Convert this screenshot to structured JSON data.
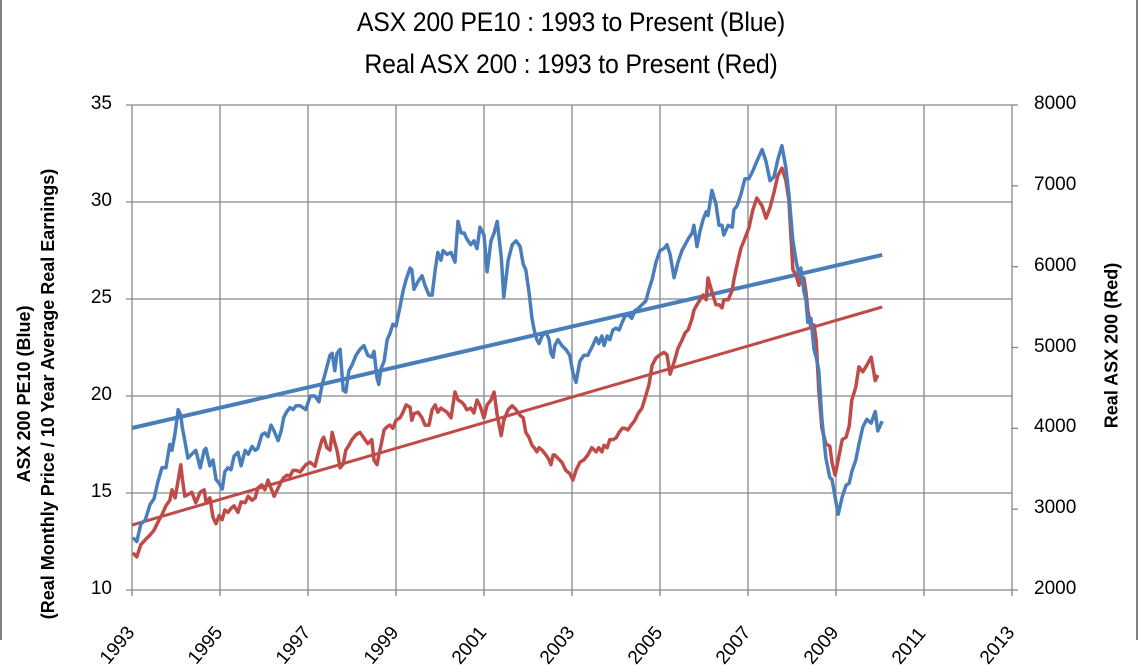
{
  "chart": {
    "title_line1": "ASX 200 PE10 : 1993 to Present (Blue)",
    "title_line2": "Real ASX 200 : 1993 to Present (Red)",
    "y_left_label_line1": "ASX 200 PE10 (Blue)",
    "y_left_label_line2": "(Real Monthly Price / 10 Year Average Real Earnings)",
    "y_right_label": "Real  ASX 200 (Red)",
    "y_left_ticks": [
      "35",
      "30",
      "25",
      "20",
      "15",
      "10"
    ],
    "y_right_ticks": [
      "8000",
      "7000",
      "6000",
      "5000",
      "4000",
      "3000",
      "2000"
    ],
    "x_ticks": [
      "1993",
      "1995",
      "1997",
      "1999",
      "2001",
      "2003",
      "2005",
      "2007",
      "2009",
      "2011",
      "2013"
    ],
    "colors": {
      "blue": "#4a7ebb",
      "red": "#be4b48",
      "grid": "#868686",
      "axis": "#868686"
    }
  },
  "chart_data": {
    "type": "line",
    "title": "ASX 200 PE10 : 1993 to Present (Blue) / Real ASX 200 : 1993 to Present (Red)",
    "xlabel": "",
    "ylabel": "ASX 200 PE10 (Blue) (Real Monthly Price / 10 Year Average Real Earnings)",
    "ylabel_right": "Real  ASX 200 (Red)",
    "xlim": [
      1993,
      2013
    ],
    "ylim": [
      10,
      35
    ],
    "ylim_right": [
      2000,
      8000
    ],
    "grid": true,
    "legend": "none (series identified in title by color)",
    "x": [
      1993.02,
      1993.11,
      1993.2,
      1993.3,
      1993.41,
      1993.5,
      1993.59,
      1993.68,
      1993.77,
      1993.86,
      1993.91,
      1993.98,
      1994.05,
      1994.11,
      1994.14,
      1994.2,
      1994.27,
      1994.36,
      1994.45,
      1994.55,
      1994.64,
      1994.68,
      1994.77,
      1994.84,
      1994.91,
      1994.98,
      1995.05,
      1995.11,
      1995.18,
      1995.25,
      1995.32,
      1995.41,
      1995.48,
      1995.57,
      1995.64,
      1995.73,
      1995.8,
      1995.86,
      1995.95,
      1996.02,
      1996.09,
      1996.16,
      1996.23,
      1996.32,
      1996.39,
      1996.45,
      1996.52,
      1996.59,
      1996.66,
      1996.73,
      1996.82,
      1996.95,
      1997.05,
      1997.16,
      1997.25,
      1997.32,
      1997.36,
      1997.43,
      1997.5,
      1997.55,
      1997.61,
      1997.66,
      1997.73,
      1997.8,
      1997.86,
      1997.93,
      1998.0,
      1998.09,
      1998.18,
      1998.27,
      1998.36,
      1998.45,
      1998.5,
      1998.57,
      1998.61,
      1998.66,
      1998.73,
      1998.8,
      1998.86,
      1998.93,
      1999.0,
      1999.09,
      1999.16,
      1999.23,
      1999.32,
      1999.36,
      1999.41,
      1999.5,
      1999.59,
      1999.66,
      1999.75,
      1999.82,
      1999.89,
      1999.95,
      2000.02,
      2000.07,
      2000.16,
      2000.25,
      2000.34,
      2000.41,
      2000.48,
      2000.55,
      2000.61,
      2000.7,
      2000.77,
      2000.84,
      2000.91,
      2001.0,
      2001.07,
      2001.16,
      2001.23,
      2001.3,
      2001.39,
      2001.45,
      2001.55,
      2001.64,
      2001.73,
      2001.82,
      2001.89,
      2001.95,
      2002.02,
      2002.09,
      2002.14,
      2002.2,
      2002.25,
      2002.32,
      2002.41,
      2002.48,
      2002.52,
      2002.57,
      2002.61,
      2002.68,
      2002.77,
      2002.86,
      2002.95,
      2003.02,
      2003.09,
      2003.18,
      2003.27,
      2003.36,
      2003.45,
      2003.55,
      2003.61,
      2003.68,
      2003.73,
      2003.8,
      2003.86,
      2003.93,
      2004.0,
      2004.07,
      2004.14,
      2004.2,
      2004.27,
      2004.36,
      2004.43,
      2004.5,
      2004.59,
      2004.68,
      2004.75,
      2004.82,
      2004.91,
      2005.0,
      2005.09,
      2005.16,
      2005.23,
      2005.32,
      2005.41,
      2005.5,
      2005.57,
      2005.64,
      2005.73,
      2005.77,
      2005.84,
      2005.91,
      2005.98,
      2006.05,
      2006.09,
      2006.18,
      2006.27,
      2006.34,
      2006.41,
      2006.45,
      2006.55,
      2006.64,
      2006.68,
      2006.75,
      2006.84,
      2006.93,
      2007.02,
      2007.11,
      2007.2,
      2007.32,
      2007.41,
      2007.5,
      2007.59,
      2007.68,
      2007.77,
      2007.86,
      2007.93,
      2008.02,
      2008.09,
      2008.16,
      2008.2,
      2008.27,
      2008.32,
      2008.36,
      2008.43,
      2008.5,
      2008.55,
      2008.61,
      2008.68,
      2008.77,
      2008.86,
      2008.91,
      2008.98,
      2009.05,
      2009.14,
      2009.23,
      2009.3,
      2009.36,
      2009.45,
      2009.52,
      2009.61,
      2009.7,
      2009.8,
      2009.89,
      2009.95,
      2010.05
    ],
    "series": [
      {
        "name": "ASX 200 PE10",
        "axis": "left",
        "color": "#4a7ebb",
        "values": [
          12.7,
          12.5,
          13.4,
          13.6,
          14.4,
          14.7,
          15.6,
          16.3,
          16.3,
          17.5,
          17.2,
          18.1,
          19.3,
          19.0,
          18.4,
          17.7,
          16.8,
          17.0,
          17.2,
          16.3,
          17.2,
          17.3,
          16.4,
          16.7,
          15.7,
          15.5,
          15.2,
          16.1,
          16.3,
          16.2,
          16.9,
          17.1,
          16.4,
          17.2,
          17.0,
          17.4,
          17.2,
          17.3,
          18.0,
          18.1,
          17.9,
          18.5,
          18.2,
          17.7,
          18.2,
          18.9,
          19.2,
          19.4,
          19.3,
          19.5,
          19.5,
          19.3,
          20.0,
          20.0,
          19.7,
          20.6,
          20.9,
          21.5,
          22.1,
          22.2,
          21.3,
          22.2,
          22.4,
          20.3,
          20.2,
          21.3,
          21.6,
          22.1,
          22.4,
          22.6,
          22.1,
          22.0,
          22.3,
          20.9,
          20.6,
          21.4,
          21.8,
          22.9,
          23.2,
          23.7,
          23.6,
          24.6,
          25.4,
          26.0,
          26.6,
          26.5,
          25.5,
          25.9,
          26.2,
          25.7,
          25.2,
          25.2,
          26.5,
          27.4,
          27.0,
          27.5,
          27.3,
          27.4,
          26.9,
          29.0,
          28.4,
          28.4,
          28.1,
          27.8,
          28.0,
          27.6,
          28.7,
          28.3,
          26.4,
          28.0,
          28.4,
          29.0,
          27.2,
          25.1,
          27.0,
          27.8,
          28.0,
          27.7,
          26.8,
          26.5,
          25.4,
          24.0,
          23.4,
          22.9,
          22.7,
          23.1,
          23.3,
          22.9,
          22.2,
          22.0,
          22.6,
          22.9,
          22.6,
          22.4,
          22.1,
          21.2,
          20.7,
          21.8,
          22.1,
          22.1,
          22.5,
          23.0,
          22.7,
          23.1,
          22.6,
          23.1,
          22.9,
          23.4,
          23.5,
          23.4,
          23.8,
          24.1,
          24.2,
          24.0,
          24.4,
          24.5,
          24.7,
          24.9,
          25.5,
          26.0,
          26.9,
          27.5,
          27.6,
          27.8,
          27.3,
          26.1,
          26.9,
          27.5,
          27.8,
          28.1,
          28.4,
          28.8,
          27.7,
          28.5,
          29.1,
          29.5,
          29.3,
          30.6,
          29.9,
          28.8,
          28.8,
          28.3,
          28.8,
          28.7,
          29.6,
          29.8,
          30.4,
          31.2,
          31.2,
          31.6,
          32.1,
          32.7,
          32.1,
          31.1,
          31.3,
          32.2,
          32.9,
          31.8,
          30.4,
          28.0,
          27.0,
          26.2,
          26.6,
          25.4,
          24.9,
          23.8,
          24.0,
          22.4,
          22.0,
          21.3,
          18.8,
          16.8,
          15.8,
          15.7,
          14.8,
          13.9,
          14.8,
          15.4,
          15.5,
          16.1,
          16.7,
          17.5,
          18.4,
          18.8,
          18.6,
          19.2,
          18.2,
          18.7
        ]
      },
      {
        "name": "Real ASX 200",
        "axis": "right",
        "color": "#be4b48",
        "values": [
          2460,
          2410,
          2560,
          2620,
          2680,
          2740,
          2840,
          2930,
          3040,
          3110,
          3240,
          3140,
          3360,
          3550,
          3390,
          3160,
          3180,
          3210,
          3080,
          3210,
          3240,
          3090,
          3140,
          2900,
          2820,
          2920,
          2870,
          2990,
          2960,
          3010,
          3040,
          2960,
          3090,
          3080,
          3160,
          3110,
          3140,
          3260,
          3300,
          3240,
          3360,
          3260,
          3160,
          3260,
          3340,
          3390,
          3420,
          3410,
          3480,
          3480,
          3460,
          3550,
          3580,
          3530,
          3730,
          3860,
          3890,
          3760,
          3730,
          3950,
          3820,
          3730,
          3510,
          3560,
          3730,
          3790,
          3860,
          3920,
          3950,
          3880,
          3810,
          3860,
          3610,
          3550,
          3670,
          3790,
          3980,
          4020,
          4040,
          4000,
          4100,
          4130,
          4200,
          4290,
          4260,
          4100,
          4180,
          4200,
          4130,
          4040,
          4040,
          4230,
          4290,
          4200,
          4250,
          4230,
          4200,
          4130,
          4450,
          4350,
          4330,
          4290,
          4230,
          4250,
          4190,
          4350,
          4280,
          4130,
          4290,
          4350,
          4450,
          4160,
          3910,
          4100,
          4230,
          4280,
          4230,
          4160,
          4130,
          3950,
          3890,
          3790,
          3760,
          3710,
          3760,
          3730,
          3670,
          3610,
          3550,
          3670,
          3670,
          3630,
          3580,
          3480,
          3440,
          3360,
          3480,
          3580,
          3610,
          3670,
          3760,
          3710,
          3760,
          3710,
          3790,
          3760,
          3860,
          3860,
          3880,
          3950,
          4000,
          4000,
          3980,
          4050,
          4100,
          4180,
          4250,
          4410,
          4540,
          4780,
          4870,
          4910,
          4940,
          4910,
          4670,
          4820,
          4990,
          5090,
          5180,
          5220,
          5360,
          5460,
          5530,
          5590,
          5650,
          5590,
          5860,
          5690,
          5530,
          5530,
          5490,
          5590,
          5590,
          5710,
          5840,
          6020,
          6230,
          6350,
          6480,
          6700,
          6850,
          6750,
          6600,
          6730,
          6920,
          7130,
          7220,
          7070,
          6820,
          5960,
          5900,
          5770,
          5860,
          5860,
          5670,
          5460,
          5250,
          5280,
          5090,
          4470,
          4000,
          3810,
          3780,
          3580,
          3420,
          3610,
          3860,
          3890,
          4030,
          4350,
          4510,
          4760,
          4700,
          4780,
          4880,
          4590,
          4660
        ]
      }
    ],
    "trendlines": [
      {
        "name": "PE10 linear trend",
        "axis": "left",
        "color": "#4a7ebb",
        "x": [
          1993,
          2010.05
        ],
        "values": [
          18.35,
          27.27
        ]
      },
      {
        "name": "Real ASX 200 linear trend",
        "axis": "right",
        "color": "#be4b48",
        "x": [
          1993,
          2010.05
        ],
        "values": [
          2804,
          5501
        ]
      }
    ]
  }
}
